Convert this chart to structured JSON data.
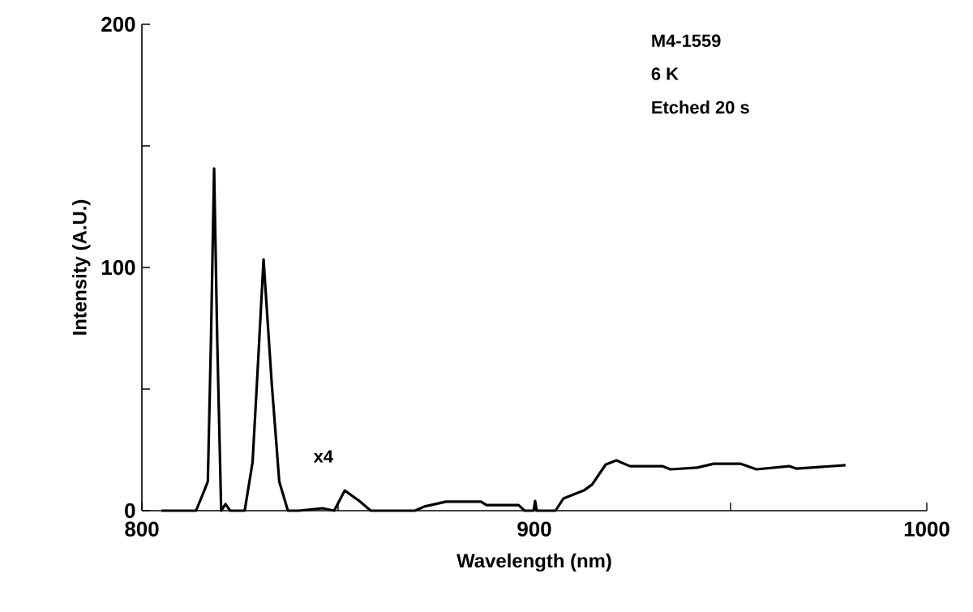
{
  "chart_data": {
    "type": "line",
    "xlabel": "Wavelength (nm)",
    "ylabel": "Intensity (A.U.)",
    "annotations": [
      "M4-1559",
      "6 K",
      "Etched 20 s",
      "x4"
    ],
    "xlim": [
      800,
      1000
    ],
    "ylim": [
      0,
      200
    ],
    "xticks": [
      800,
      {
        "value": 850,
        "label": null
      },
      900,
      {
        "value": 950,
        "label": null
      },
      1000
    ],
    "yticks": [
      0,
      {
        "value": 50,
        "label": null
      },
      100,
      {
        "value": 150,
        "label": null
      },
      200
    ],
    "marker": "none",
    "line_style": "solid",
    "series": [
      {
        "color": "#000000",
        "x": [
          805,
          813.8,
          815.9,
          816.8,
          817.6,
          818.4,
          819.2,
          820.2,
          821.3,
          822.5,
          826.2,
          828.2,
          829.3,
          831.0,
          833.1,
          835.0,
          837.2,
          840,
          846,
          849,
          851.7,
          855.4,
          858.3,
          869.6,
          872,
          877.5,
          886.4,
          887.8,
          896,
          897.5,
          899.8,
          900.2,
          900.6,
          905.4,
          907.4,
          912.6,
          914.7,
          918.2,
          920.9,
          924.4,
          932.6,
          934.7,
          941.5,
          945.7,
          952.5,
          956.6,
          964.9,
          966.7,
          979.3
        ],
        "values": [
          0,
          0,
          8.3,
          12,
          70,
          140.7,
          70,
          0,
          2.7,
          0,
          0,
          20,
          52,
          103.3,
          52,
          12,
          0,
          0,
          1,
          0,
          8.3,
          4,
          0,
          0,
          1.7,
          3.7,
          3.7,
          2.3,
          2.3,
          0,
          0,
          4,
          0,
          0,
          5,
          8.3,
          10.7,
          19,
          20.7,
          18.3,
          18.3,
          17,
          17.7,
          19.3,
          19.3,
          17,
          18.3,
          17.3,
          18.7
        ]
      }
    ]
  }
}
